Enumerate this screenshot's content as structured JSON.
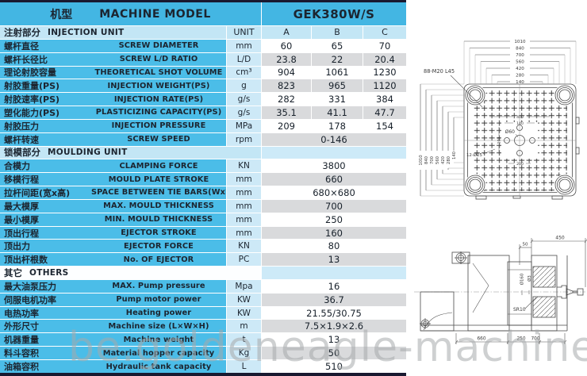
{
  "header": {
    "title_cn": "机型",
    "title_en": "MACHINE MODEL",
    "model": "GEK380W/S"
  },
  "columns": {
    "unit": "UNIT",
    "a": "A",
    "b": "B",
    "c": "C"
  },
  "sections": [
    {
      "cn": "注射部分",
      "en": "INJECTION UNIT",
      "rows": [
        {
          "cn": "螺杆直径",
          "en": "SCREW DIAMETER",
          "unit": "mm",
          "a": "60",
          "b": "65",
          "c": "70"
        },
        {
          "cn": "螺杆长径比",
          "en": "SCREW L/D RATIO",
          "unit": "L/D",
          "a": "23.8",
          "b": "22",
          "c": "20.4"
        },
        {
          "cn": "理论射胶容量",
          "en": "THEORETICAL SHOT VOLUME",
          "unit": "cm³",
          "a": "904",
          "b": "1061",
          "c": "1230"
        },
        {
          "cn": "射胶重量(PS)",
          "en": "INJECTION WEIGHT(PS)",
          "unit": "g",
          "a": "823",
          "b": "965",
          "c": "1120"
        },
        {
          "cn": "射胶速率(PS)",
          "en": "INJECTION RATE(PS)",
          "unit": "g/s",
          "a": "282",
          "b": "331",
          "c": "384"
        },
        {
          "cn": "塑化能力(PS)",
          "en": "PLASTICIZING CAPACITY(PS)",
          "unit": "g/s",
          "a": "35.1",
          "b": "41.1",
          "c": "47.7"
        },
        {
          "cn": "射胶压力",
          "en": "INJECTION PRESSURE",
          "unit": "MPa",
          "a": "209",
          "b": "178",
          "c": "154"
        },
        {
          "cn": "螺杆转速",
          "en": "SCREW SPEED",
          "unit": "rpm",
          "span": "0-146"
        }
      ]
    },
    {
      "cn": "锁模部分",
      "en": "MOULDING UNIT",
      "rows": [
        {
          "cn": "合模力",
          "en": "CLAMPING FORCE",
          "unit": "KN",
          "span": "3800"
        },
        {
          "cn": "移模行程",
          "en": "MOULD PLATE STROKE",
          "unit": "mm",
          "span": "660"
        },
        {
          "cn": "拉杆间距(宽x高)",
          "en": "SPACE BETWEEN TIE BARS(WxH)",
          "unit": "mm",
          "span": "680×680"
        },
        {
          "cn": "最大模厚",
          "en": "MAX. MOULD THICKNESS",
          "unit": "mm",
          "span": "700"
        },
        {
          "cn": "最小模厚",
          "en": "MIN. MOULD THICKNESS",
          "unit": "mm",
          "span": "250"
        },
        {
          "cn": "顶出行程",
          "en": "EJECTOR STROKE",
          "unit": "mm",
          "span": "160"
        },
        {
          "cn": "顶出力",
          "en": "EJECTOR FORCE",
          "unit": "KN",
          "span": "80"
        },
        {
          "cn": "顶出杆根数",
          "en": "No. OF EJECTOR",
          "unit": "PC",
          "span": "13"
        }
      ]
    },
    {
      "cn": "其它",
      "en": "OTHERS",
      "rows": [
        {
          "cn": "最大油泵压力",
          "en": "MAX. Pump pressure",
          "unit": "Mpa",
          "span": "16"
        },
        {
          "cn": "伺服电机功率",
          "en": "Pump motor power",
          "unit": "KW",
          "span": "36.7"
        },
        {
          "cn": "电热功率",
          "en": "Heating power",
          "unit": "KW",
          "span": "21.55/30.75"
        },
        {
          "cn": "外形尺寸",
          "en": "Machine size (L×W×H)",
          "unit": "m",
          "span": "7.5×1.9×2.6"
        },
        {
          "cn": "机器重量",
          "en": "Machine weight",
          "unit": "t",
          "span": "13"
        },
        {
          "cn": "料斗容积",
          "en": "Material hopper capacity",
          "unit": "Kg",
          "span": "50"
        },
        {
          "cn": "油箱容积",
          "en": "Hydraulic tank capacity",
          "unit": "L",
          "span": "510"
        }
      ]
    }
  ],
  "drawing": {
    "top_view": {
      "h_dims": [
        "1010",
        "840",
        "700",
        "560",
        "420",
        "280",
        "140"
      ],
      "v_dims": [
        "1010",
        "840",
        "700",
        "560",
        "420",
        "280",
        "140"
      ],
      "bolt_pattern_label": "88-M20 L45",
      "center_hole_label": "Ø60",
      "holes_label": "12-Ø25",
      "inner_dims": {
        "w400": "400",
        "w140": "140",
        "w200": "200",
        "h100": "100"
      }
    },
    "side_view": {
      "d450": "450",
      "d50": "50",
      "dia160": "Ø160",
      "dia3": "Ø3",
      "sr10": "SR10",
      "d660": "660",
      "d250": "250",
      "d700": "700"
    }
  },
  "watermark": "be.goldeneagle-machinery.com",
  "colors": {
    "header_blue": "#43b6e3",
    "row_blue": "#4bbde8",
    "section_blue": "#c3e6f5",
    "unit_blue": "#cde9f7",
    "band_blue": "#cdeaf8",
    "row_gray": "#d9dadc",
    "border_navy": "#191930"
  }
}
